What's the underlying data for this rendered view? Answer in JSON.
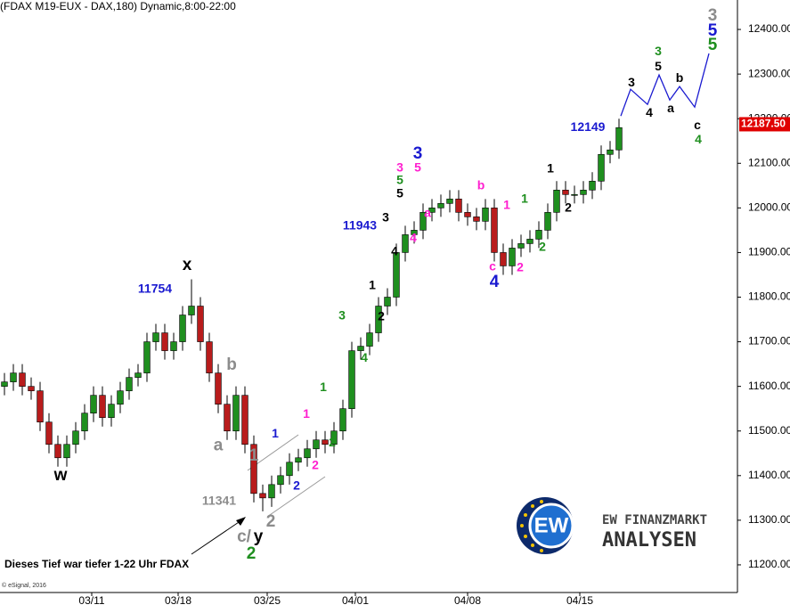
{
  "chart_data": {
    "type": "candlestick",
    "title": "(FDAX M19-EUX - DAX,180) Dynamic,8:00-22:00",
    "x": [
      0.5,
      1.5,
      2.5,
      3.5,
      4.5,
      5.5,
      6.5,
      7.5,
      8.5,
      9.5,
      10.5,
      11.5,
      12.5,
      13.5,
      14.5,
      15.5,
      16.5,
      17.5,
      18.5,
      19.5,
      20.5,
      21.5,
      22.5,
      23.5,
      24.5,
      25.5,
      26.5,
      27.5,
      28.5,
      29.5,
      30.5,
      31.5,
      32.5,
      33.5,
      34.5,
      35.5,
      36.5,
      37.5,
      38.5,
      39.5,
      40.5,
      41.5,
      42.5,
      43.5,
      44.5,
      45.5,
      46.5,
      47.5,
      48.5,
      49.5,
      50.5,
      51.5,
      52.5,
      53.5,
      54.5,
      55.5,
      56.5,
      57.5,
      58.5,
      59.5,
      60.5,
      61.5,
      62.5,
      63.5,
      64.5,
      65.5,
      66.5,
      67.5,
      68.5,
      69.5
    ],
    "open": [
      11600,
      11610,
      11630,
      11600,
      11590,
      11520,
      11470,
      11440,
      11470,
      11500,
      11540,
      11580,
      11530,
      11560,
      11590,
      11620,
      11630,
      11700,
      11720,
      11680,
      11700,
      11760,
      11780,
      11700,
      11630,
      11560,
      11500,
      11580,
      11470,
      11360,
      11350,
      11380,
      11400,
      11430,
      11440,
      11460,
      11480,
      11470,
      11500,
      11550,
      11680,
      11690,
      11720,
      11780,
      11800,
      11900,
      11940,
      11950,
      11990,
      12000,
      12010,
      12020,
      11990,
      11980,
      11970,
      12000,
      11900,
      11870,
      11910,
      11920,
      11930,
      11950,
      11990,
      12040,
      12030,
      12030,
      12040,
      12060,
      12120,
      12130
    ],
    "high": [
      11630,
      11650,
      11650,
      11620,
      11610,
      11540,
      11490,
      11490,
      11520,
      11560,
      11600,
      11600,
      11580,
      11610,
      11640,
      11650,
      11720,
      11740,
      11740,
      11720,
      11780,
      11840,
      11800,
      11720,
      11650,
      11580,
      11600,
      11600,
      11490,
      11380,
      11400,
      11420,
      11450,
      11460,
      11480,
      11500,
      11500,
      11520,
      11570,
      11700,
      11710,
      11740,
      11800,
      11820,
      11920,
      11960,
      11970,
      12010,
      12020,
      12030,
      12040,
      12040,
      12010,
      12000,
      12020,
      12020,
      11920,
      11930,
      11940,
      11950,
      11970,
      12010,
      12060,
      12060,
      12050,
      12060,
      12080,
      12140,
      12150,
      12200
    ],
    "low": [
      11580,
      11590,
      11580,
      11570,
      11500,
      11450,
      11420,
      11420,
      11450,
      11480,
      11520,
      11510,
      11510,
      11540,
      11570,
      11600,
      11610,
      11680,
      11660,
      11660,
      11680,
      11740,
      11680,
      11610,
      11540,
      11480,
      11480,
      11450,
      11340,
      11320,
      11330,
      11360,
      11380,
      11410,
      11420,
      11440,
      11450,
      11450,
      11480,
      11530,
      11660,
      11670,
      11700,
      11760,
      11780,
      11880,
      11920,
      11930,
      11970,
      11980,
      11990,
      11970,
      11960,
      11950,
      11950,
      11880,
      11850,
      11850,
      11890,
      11900,
      11910,
      11930,
      11970,
      12010,
      12010,
      12010,
      12020,
      12040,
      12100,
      12110
    ],
    "close": [
      11610,
      11630,
      11600,
      11590,
      11520,
      11470,
      11440,
      11470,
      11500,
      11540,
      11580,
      11530,
      11560,
      11590,
      11620,
      11630,
      11700,
      11720,
      11680,
      11700,
      11760,
      11780,
      11700,
      11630,
      11560,
      11500,
      11580,
      11470,
      11360,
      11350,
      11380,
      11400,
      11430,
      11440,
      11460,
      11480,
      11470,
      11500,
      11550,
      11680,
      11690,
      11720,
      11780,
      11800,
      11900,
      11940,
      11950,
      11990,
      12000,
      12010,
      12020,
      11990,
      11980,
      11970,
      12000,
      11900,
      11870,
      11910,
      11920,
      11930,
      11950,
      11990,
      12040,
      12030,
      12030,
      12040,
      12060,
      12120,
      12130,
      12180
    ],
    "up_color": "#1f8f1f",
    "down_color": "#b81c1c",
    "xlim": [
      0,
      82.8
    ],
    "xticks": [
      {
        "value": 10.3,
        "label": "03/11"
      },
      {
        "value": 20.0,
        "label": "03/18"
      },
      {
        "value": 30.0,
        "label": "03/25"
      },
      {
        "value": 39.9,
        "label": "04/01"
      },
      {
        "value": 52.5,
        "label": "04/08"
      },
      {
        "value": 65.1,
        "label": "04/15"
      }
    ],
    "ylim": [
      11138,
      12466
    ],
    "yticks": [
      {
        "value": 11200,
        "label": "11200.00"
      },
      {
        "value": 11300,
        "label": "11300.00"
      },
      {
        "value": 11400,
        "label": "11400.00"
      },
      {
        "value": 11500,
        "label": "11500.00"
      },
      {
        "value": 11600,
        "label": "11600.00"
      },
      {
        "value": 11700,
        "label": "11700.00"
      },
      {
        "value": 11800,
        "label": "11800.00"
      },
      {
        "value": 11900,
        "label": "11900.00"
      },
      {
        "value": 12000,
        "label": "12000.00"
      },
      {
        "value": 12100,
        "label": "12100.00"
      },
      {
        "value": 12200,
        "label": "12200.00"
      },
      {
        "value": 12300,
        "label": "12300.00"
      },
      {
        "value": 12400,
        "label": "12400.00"
      }
    ],
    "forecast": {
      "color": "#1a1ad0",
      "x": [
        69.7,
        70.8,
        72.7,
        74.0,
        75.2,
        76.3,
        78.0,
        79.6
      ],
      "values": [
        12206,
        12266,
        12232,
        12298,
        12242,
        12272,
        12226,
        12346
      ]
    },
    "last_price": {
      "value": 12187.5,
      "label": "12187.50",
      "color": "#e00000"
    },
    "annotations": [
      {
        "text": "x",
        "color": "#000000",
        "x": 21.0,
        "y": 11871,
        "big": true
      },
      {
        "text": "11754",
        "color": "#1a1ad0",
        "x": 17.4,
        "y": 11817
      },
      {
        "text": "w",
        "color": "#000000",
        "x": 6.8,
        "y": 11400,
        "big": true
      },
      {
        "text": "b",
        "color": "#8c8c8c",
        "x": 26.0,
        "y": 11647,
        "big": true
      },
      {
        "text": "a",
        "color": "#8c8c8c",
        "x": 24.5,
        "y": 11467,
        "big": true
      },
      {
        "text": "1",
        "color": "#8c8c8c",
        "x": 28.5,
        "y": 11444,
        "big": true
      },
      {
        "text": "11341",
        "color": "#8c8c8c",
        "x": 24.6,
        "y": 11342
      },
      {
        "text": "2",
        "color": "#8c8c8c",
        "x": 30.4,
        "y": 11296,
        "big": true
      },
      {
        "text": "c/",
        "color": "#8c8c8c",
        "x": 27.4,
        "y": 11262,
        "big": true
      },
      {
        "text": "y",
        "color": "#000000",
        "x": 29.0,
        "y": 11262,
        "big": true
      },
      {
        "text": "2",
        "color": "#1f8f1f",
        "x": 28.2,
        "y": 11224,
        "big": true
      },
      {
        "text": "1",
        "color": "#1a1ad0",
        "x": 30.9,
        "y": 11493
      },
      {
        "text": "2",
        "color": "#1a1ad0",
        "x": 33.3,
        "y": 11376
      },
      {
        "text": "1",
        "color": "#ff1fcf",
        "x": 34.4,
        "y": 11537
      },
      {
        "text": "2",
        "color": "#ff1fcf",
        "x": 35.4,
        "y": 11422
      },
      {
        "text": "1",
        "color": "#1f8f1f",
        "x": 36.3,
        "y": 11597
      },
      {
        "text": "2",
        "color": "#1f8f1f",
        "x": 37.3,
        "y": 11473
      },
      {
        "text": "3",
        "color": "#1f8f1f",
        "x": 38.4,
        "y": 11757
      },
      {
        "text": "4",
        "color": "#1f8f1f",
        "x": 40.9,
        "y": 11663
      },
      {
        "text": "1",
        "color": "#000000",
        "x": 41.8,
        "y": 11825
      },
      {
        "text": "2",
        "color": "#000000",
        "x": 42.8,
        "y": 11755
      },
      {
        "text": "11943",
        "color": "#1a1ad0",
        "x": 40.4,
        "y": 11959
      },
      {
        "text": "3",
        "color": "#000000",
        "x": 43.3,
        "y": 11977
      },
      {
        "text": "4",
        "color": "#000000",
        "x": 44.3,
        "y": 11901
      },
      {
        "text": "3",
        "color": "#ff1fcf",
        "x": 44.9,
        "y": 12089
      },
      {
        "text": "5",
        "color": "#1f8f1f",
        "x": 44.9,
        "y": 12061
      },
      {
        "text": "5",
        "color": "#000000",
        "x": 44.9,
        "y": 12031
      },
      {
        "text": "4",
        "color": "#ff1fcf",
        "x": 46.4,
        "y": 11931
      },
      {
        "text": "3",
        "color": "#1a1ad0",
        "x": 46.9,
        "y": 12121,
        "big": true
      },
      {
        "text": "5",
        "color": "#ff1fcf",
        "x": 46.9,
        "y": 12089
      },
      {
        "text": "a",
        "color": "#ff1fcf",
        "x": 48.0,
        "y": 11987
      },
      {
        "text": "b",
        "color": "#ff1fcf",
        "x": 54.0,
        "y": 12049
      },
      {
        "text": "c",
        "color": "#ff1fcf",
        "x": 55.3,
        "y": 11867
      },
      {
        "text": "4",
        "color": "#1a1ad0",
        "x": 55.5,
        "y": 11833,
        "big": true
      },
      {
        "text": "1",
        "color": "#ff1fcf",
        "x": 56.9,
        "y": 12005
      },
      {
        "text": "2",
        "color": "#ff1fcf",
        "x": 58.4,
        "y": 11865
      },
      {
        "text": "1",
        "color": "#1f8f1f",
        "x": 58.9,
        "y": 12019
      },
      {
        "text": "2",
        "color": "#1f8f1f",
        "x": 60.9,
        "y": 11911
      },
      {
        "text": "1",
        "color": "#000000",
        "x": 61.8,
        "y": 12087
      },
      {
        "text": "2",
        "color": "#000000",
        "x": 63.8,
        "y": 11999
      },
      {
        "text": "12149",
        "color": "#1a1ad0",
        "x": 66.0,
        "y": 12180
      },
      {
        "text": "3",
        "color": "#000000",
        "x": 70.9,
        "y": 12280
      },
      {
        "text": "4",
        "color": "#000000",
        "x": 72.9,
        "y": 12212
      },
      {
        "text": "3",
        "color": "#1f8f1f",
        "x": 73.9,
        "y": 12350
      },
      {
        "text": "5",
        "color": "#000000",
        "x": 73.9,
        "y": 12316
      },
      {
        "text": "a",
        "color": "#000000",
        "x": 75.3,
        "y": 12222
      },
      {
        "text": "b",
        "color": "#000000",
        "x": 76.3,
        "y": 12290
      },
      {
        "text": "c",
        "color": "#000000",
        "x": 78.3,
        "y": 12184
      },
      {
        "text": "4",
        "color": "#1f8f1f",
        "x": 78.4,
        "y": 12152
      },
      {
        "text": "3",
        "color": "#8c8c8c",
        "x": 80.0,
        "y": 12430,
        "big": true
      },
      {
        "text": "5",
        "color": "#1a1ad0",
        "x": 80.0,
        "y": 12396,
        "big": true
      },
      {
        "text": "5",
        "color": "#1f8f1f",
        "x": 80.0,
        "y": 12364,
        "big": true
      }
    ],
    "note": "Dieses Tief war tiefer 1-22 Uhr FDAX",
    "copyright": "© eSignal, 2016",
    "logo": {
      "badge": "EW",
      "line1": "EW FINANZMARKT",
      "line2": "ANALYSEN"
    }
  }
}
